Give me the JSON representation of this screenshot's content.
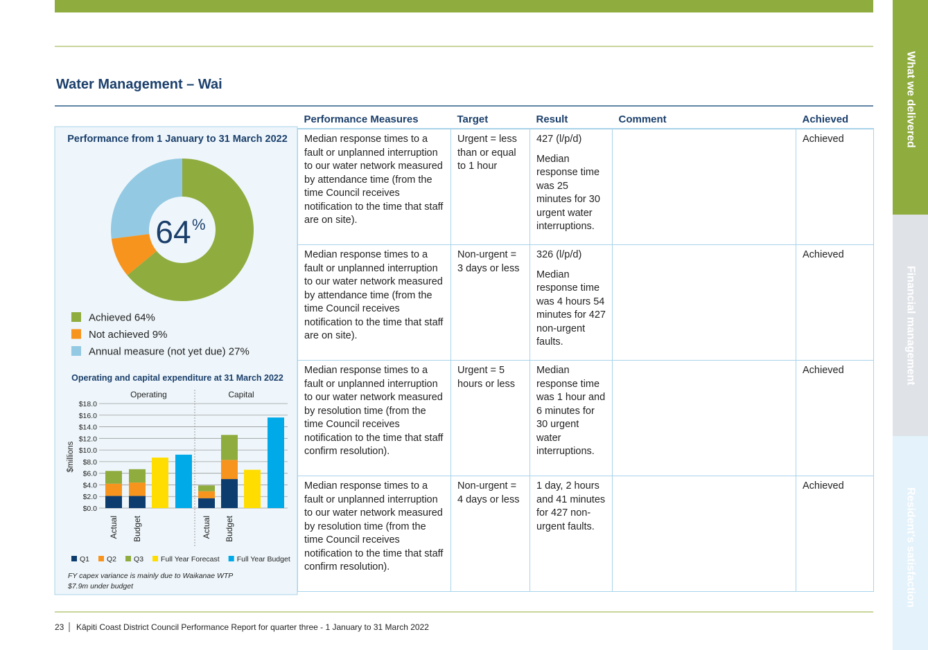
{
  "header": {
    "title": "Water Management – Wai"
  },
  "side_tabs": [
    "What we delivered",
    "Financial management",
    "Resident's satisfaction"
  ],
  "chart_data": [
    {
      "type": "pie",
      "title": "Performance from 1 January to 31 March 2022",
      "center_label": {
        "value": "64",
        "unit": "%"
      },
      "categories": [
        "Achieved 64%",
        "Not achieved 9%",
        "Annual measure (not yet due) 27%"
      ],
      "values": [
        64,
        9,
        27
      ],
      "colors": [
        "#8fac3e",
        "#f7941d",
        "#93c9e3"
      ],
      "donut": true
    },
    {
      "type": "bar",
      "stacked": true,
      "title": "Operating and capital expenditure at 31 March 2022",
      "ylabel": "$millions",
      "groups": [
        "Operating",
        "Capital"
      ],
      "categories": [
        "Actual",
        "Budget",
        null,
        null,
        "Actual",
        "Budget",
        null,
        null
      ],
      "series": [
        {
          "name": "Q1",
          "color": "#0d3c6e",
          "values": [
            2.1,
            2.1,
            null,
            null,
            1.7,
            5.0,
            null,
            null
          ]
        },
        {
          "name": "Q2",
          "color": "#f7941d",
          "values": [
            2.1,
            2.3,
            null,
            null,
            1.2,
            3.3,
            null,
            null
          ]
        },
        {
          "name": "Q3",
          "color": "#8fac3e",
          "values": [
            2.2,
            2.3,
            null,
            null,
            1.0,
            4.3,
            null,
            null
          ]
        },
        {
          "name": "Full Year Forecast",
          "color": "#ffdd00",
          "values": [
            null,
            null,
            8.7,
            null,
            null,
            null,
            6.6,
            null
          ]
        },
        {
          "name": "Full Year Budget",
          "color": "#00a9e8",
          "values": [
            null,
            null,
            null,
            9.2,
            null,
            null,
            null,
            15.6
          ]
        }
      ],
      "ylim": [
        0,
        18
      ],
      "yticks": [
        {
          "value": 0,
          "label": "$0.0"
        },
        {
          "value": 2,
          "label": "$2.0"
        },
        {
          "value": 4,
          "label": "$4.0"
        },
        {
          "value": 6,
          "label": "$6.0"
        },
        {
          "value": 8,
          "label": "$8.0"
        },
        {
          "value": 10,
          "label": "$10.0"
        },
        {
          "value": 12,
          "label": "$12.0"
        },
        {
          "value": 14,
          "label": "$14.0"
        },
        {
          "value": 16,
          "label": "$16.0"
        },
        {
          "value": 18,
          "label": "$18.0"
        }
      ],
      "grid": true,
      "note": [
        "FY capex variance is mainly due to Waikanae WTP",
        "$7.9m under budget"
      ]
    }
  ],
  "table": {
    "columns": [
      "Performance Measures",
      "Target",
      "Result",
      "Comment",
      "Achieved"
    ],
    "rows": [
      {
        "measure": "Median response times to a fault or unplanned interruption to our water network measured by attendance time (from the time Council receives notification to the time that staff are on site).",
        "target": "Urgent = less than or equal to 1 hour",
        "result": [
          "427 (l/p/d)",
          "Median response time was 25 minutes for 30 urgent water interruptions."
        ],
        "achieved": "Achieved"
      },
      {
        "measure": "Median response times to a fault or unplanned interruption to our water network measured by attendance time (from the time Council receives notification to the time that staff are on site).",
        "target": "Non-urgent = 3 days or less",
        "result": [
          "326 (l/p/d)",
          "Median response time was 4 hours 54 minutes for 427 non-urgent faults."
        ],
        "achieved": "Achieved"
      },
      {
        "measure": "Median response times to a fault or unplanned interruption to our water network measured by resolution time (from the time Council receives notification to the time that staff confirm resolution).",
        "target": "Urgent = 5 hours or less",
        "result": [
          "Median response time was 1 hour and 6 minutes for 30 urgent water interruptions."
        ],
        "achieved": "Achieved"
      },
      {
        "measure": "Median response times to a fault or unplanned interruption to our water network measured by resolution time (from the time Council receives notification to the time that staff confirm resolution).",
        "target": "Non-urgent = 4 days or less",
        "result": [
          "1 day, 2 hours and 41 minutes for 427 non-urgent faults."
        ],
        "achieved": "Achieved"
      }
    ]
  },
  "footer": {
    "page": "23",
    "text": "Kāpiti Coast District Council Performance Report for quarter three - 1 January to 31 March 2022"
  }
}
